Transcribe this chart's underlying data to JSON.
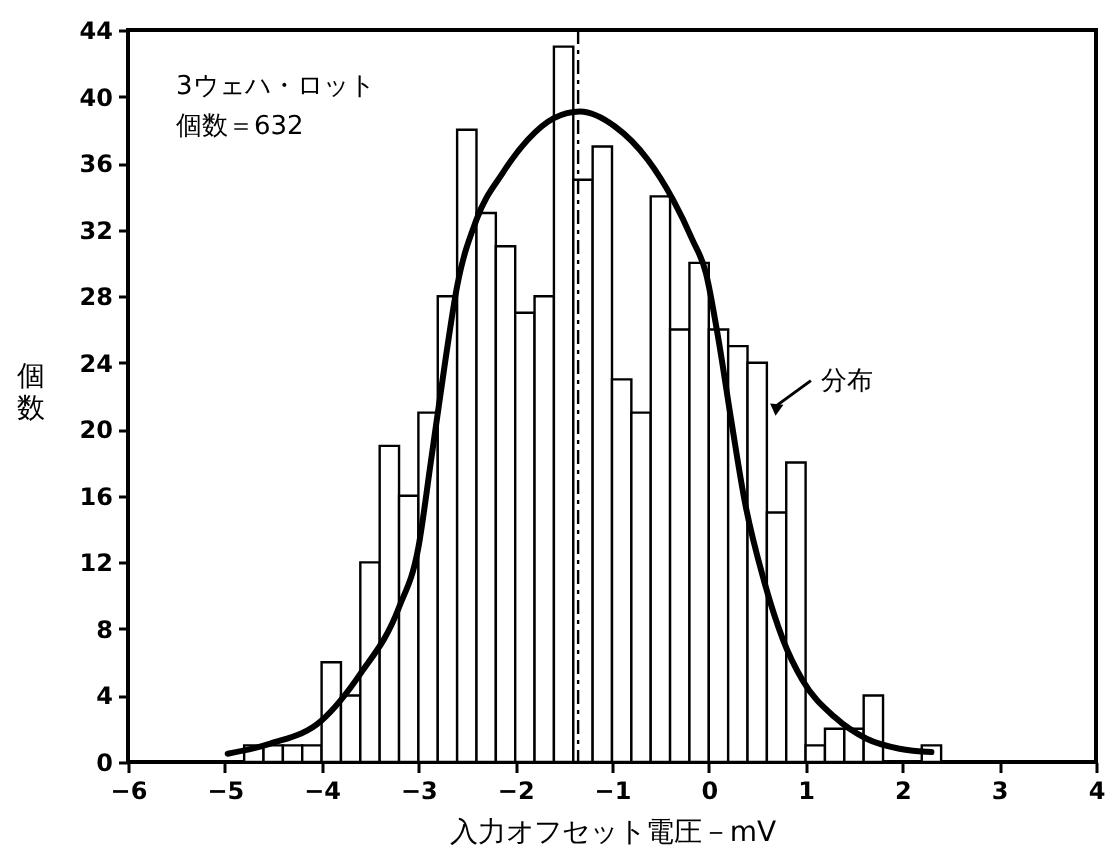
{
  "chart_data": {
    "type": "histogram",
    "xlabel": "入力オフセット電圧－mV",
    "ylabel": "個数",
    "series": [
      {
        "color": "#ffffff",
        "bins": [
          -4.8,
          -4.6,
          -4.4,
          -4.2,
          -4.0,
          -3.8,
          -3.6,
          -3.4,
          -3.2,
          -3.0,
          -2.8,
          -2.6,
          -2.4,
          -2.2,
          -2.0,
          -1.8,
          -1.6,
          -1.4,
          -1.2,
          -1.0,
          -0.8,
          -0.6,
          -0.4,
          -0.2,
          0.0,
          0.2,
          0.4,
          0.6,
          0.8,
          1.0,
          1.2,
          1.4,
          1.6,
          1.8,
          2.0,
          2.2,
          2.4
        ],
        "values": [
          1,
          1,
          1,
          1,
          6,
          4,
          12,
          19,
          16,
          21,
          28,
          38,
          33,
          31,
          27,
          28,
          43,
          35,
          37,
          23,
          21,
          34,
          26,
          30,
          26,
          25,
          24,
          15,
          18,
          1,
          2,
          2,
          4,
          0,
          0,
          1
        ]
      },
      {
        "type": "line",
        "color": "#000000",
        "x": [
          -4.97,
          -4.53,
          -4.0,
          -3.6,
          -3.2,
          -3.0,
          -2.87,
          -2.73,
          -2.6,
          -2.4,
          -2.13,
          -1.87,
          -1.6,
          -1.33,
          -0.97,
          -0.63,
          -0.37,
          -0.17,
          -0.03,
          0.1,
          0.23,
          0.37,
          0.57,
          0.77,
          0.97,
          1.3,
          1.63,
          1.97,
          2.3
        ],
        "values": [
          0.5,
          1.1,
          2.5,
          5.3,
          9.3,
          12.9,
          18.1,
          23.8,
          28.6,
          32.6,
          35.4,
          37.4,
          38.7,
          39.1,
          38.2,
          36.2,
          33.8,
          31.4,
          29.4,
          25.4,
          20.6,
          15.7,
          10.9,
          7.3,
          4.9,
          2.7,
          1.4,
          0.8,
          0.6
        ]
      }
    ],
    "xlim": [
      -6,
      4
    ],
    "ylim": [
      0,
      44
    ],
    "xticks": [
      -6,
      -5,
      -4,
      -3,
      -2,
      -1,
      0,
      1,
      2,
      3,
      4
    ],
    "yticks": [
      0,
      4,
      8,
      12,
      16,
      20,
      24,
      28,
      32,
      36,
      40,
      44
    ],
    "ref_lines": [
      {
        "axis": "x",
        "value": -1.35,
        "color": "#000000",
        "line_style": "dashed"
      }
    ],
    "annotations": [
      "3ウェハ・ロット",
      "個数＝632",
      {
        "text": "分布",
        "x": 0.6,
        "y": 21
      }
    ]
  }
}
